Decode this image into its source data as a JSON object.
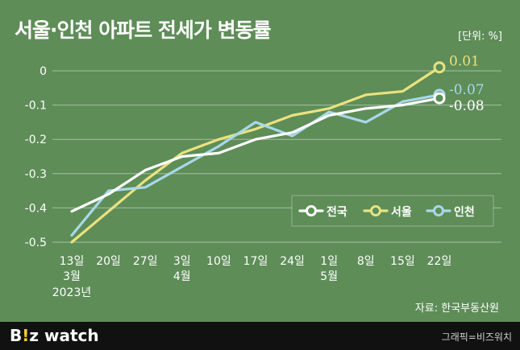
{
  "header": {
    "title": "서울·인천 아파트 전세가 변동률",
    "unit": "[단위: %]"
  },
  "source": "자료: 한국부동산원",
  "footer": {
    "brand_prefix": "B",
    "brand_accent": "!",
    "brand_suffix": "z watch",
    "credit": "그래픽=비즈워치"
  },
  "colors": {
    "background": "#5e8d58",
    "nation": "#ffffff",
    "seoul": "#ebe27f",
    "incheon": "#a9d8ea"
  },
  "chart_data": {
    "type": "line",
    "title": "서울·인천 아파트 전세가 변동률",
    "categories": [
      "13일",
      "20일",
      "27일",
      "3일",
      "10일",
      "17일",
      "24일",
      "1일",
      "8일",
      "15일",
      "22일"
    ],
    "category_sublabels": [
      [
        "3월",
        "2023년"
      ],
      [],
      [],
      [
        "4월"
      ],
      [],
      [],
      [],
      [
        "5월"
      ],
      [],
      [],
      []
    ],
    "y_ticks": [
      "0",
      "-0.1",
      "-0.2",
      "-0.3",
      "-0.4",
      "-0.5"
    ],
    "ylim": [
      -0.5,
      0
    ],
    "grid": true,
    "legend_position": "right",
    "series": [
      {
        "name": "전국",
        "color_key": "nation",
        "values": [
          -0.41,
          -0.36,
          -0.29,
          -0.25,
          -0.24,
          -0.2,
          -0.18,
          -0.13,
          -0.11,
          -0.1,
          -0.08
        ],
        "end_label": "-0.08"
      },
      {
        "name": "서울",
        "color_key": "seoul",
        "values": [
          -0.5,
          -0.41,
          -0.32,
          -0.24,
          -0.2,
          -0.17,
          -0.13,
          -0.11,
          -0.07,
          -0.06,
          0.01
        ],
        "end_label": "0.01"
      },
      {
        "name": "인천",
        "color_key": "incheon",
        "values": [
          -0.48,
          -0.35,
          -0.34,
          -0.28,
          -0.22,
          -0.15,
          -0.19,
          -0.12,
          -0.15,
          -0.09,
          -0.07
        ],
        "end_label": "-0.07"
      }
    ]
  }
}
